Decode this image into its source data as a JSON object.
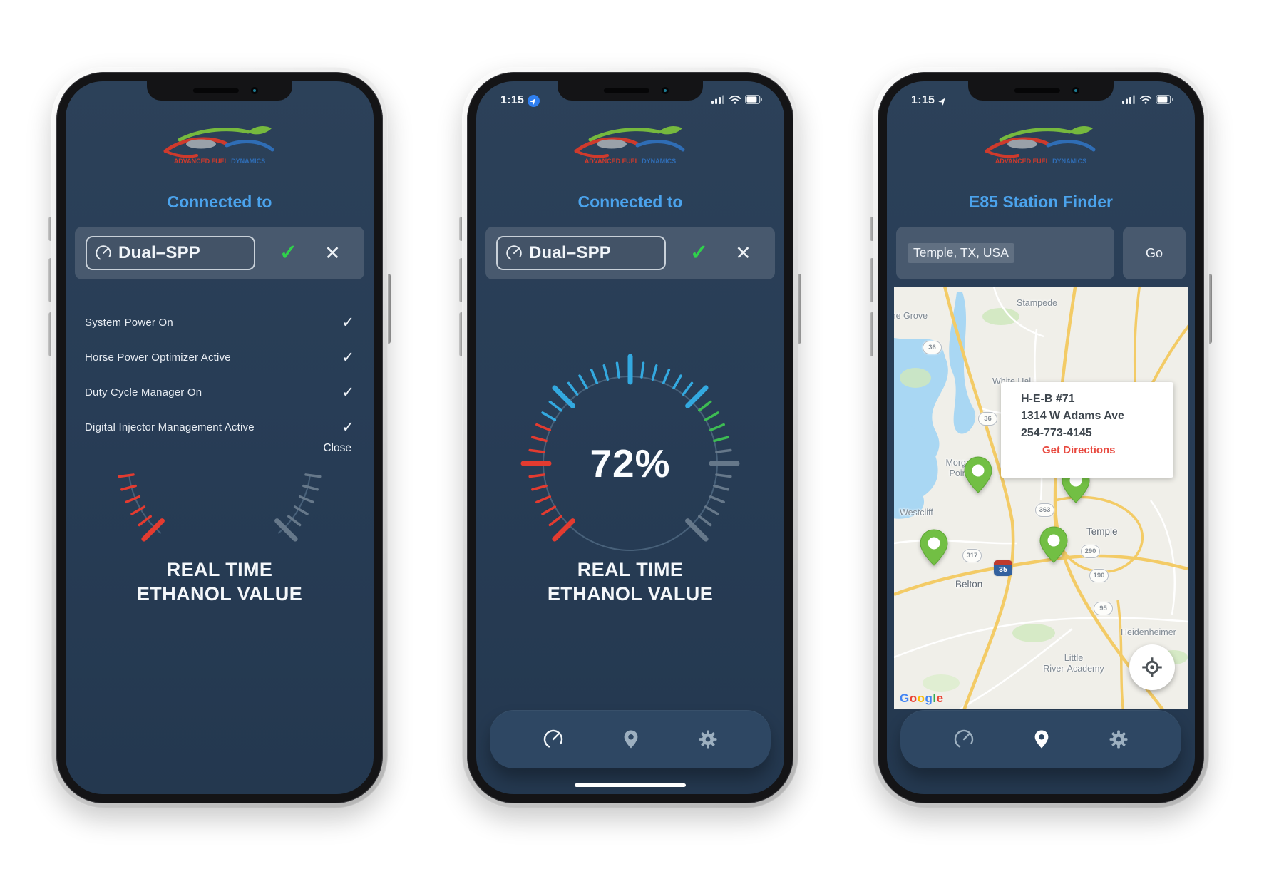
{
  "colors": {
    "accent_blue": "#4ba3ec",
    "screen_bg": "#273c55",
    "gauge": {
      "red": "#e33b30",
      "blue": "#33a9e0",
      "green": "#3dbb53",
      "gray": "#66788a",
      "track": "#48617a"
    },
    "marker_green": "#72bf44",
    "directions_red": "#e8493f"
  },
  "logo": {
    "line1": "ADVANCED FUEL",
    "line2": "DYNAMICS"
  },
  "phones": [
    {
      "header": "Connected to",
      "device_name": "Dual–SPP",
      "confirm_icon": "✓",
      "dismiss_icon": "✕",
      "checklist": [
        {
          "label": "System Power On",
          "mark": "✓"
        },
        {
          "label": "Horse Power Optimizer Active",
          "mark": "✓"
        },
        {
          "label": "Duty Cycle Manager On",
          "mark": "✓"
        },
        {
          "label": "Digital Injector Management Active",
          "mark": "✓"
        }
      ],
      "close_label": "Close",
      "realtime_line1": "REAL TIME",
      "realtime_line2": "ETHANOL VALUE",
      "gauge": {
        "partial": true
      }
    },
    {
      "status_time": "1:15",
      "header": "Connected to",
      "device_name": "Dual–SPP",
      "confirm_icon": "✓",
      "dismiss_icon": "✕",
      "gauge": {
        "partial": false,
        "value": 72,
        "value_label": "72%"
      },
      "realtime_line1": "REAL TIME",
      "realtime_line2": "ETHANOL VALUE"
    },
    {
      "status_time": "1:15",
      "header": "E85 Station Finder",
      "search_value": "Temple, TX, USA",
      "go_label": "Go",
      "map": {
        "labels": {
          "the_grove": "The Grove",
          "stampede": "Stampede",
          "white_hall": "White Hall",
          "morgans_1": "Morgan's",
          "morgans_2": "Point R",
          "westcliff": "Westcliff",
          "temple": "Temple",
          "belton": "Belton",
          "heidenheimer": "Heidenheimer",
          "little_river_1": "Little",
          "little_river_2": "River-Academy"
        },
        "shields": {
          "s36a": "36",
          "s36b": "36",
          "s363": "363",
          "s317": "317",
          "s290": "290",
          "s190": "190",
          "s95": "95"
        },
        "interstate": "35",
        "info_card": {
          "name": "H-E-B #71",
          "address": "1314 W Adams Ave",
          "phone": "254-773-4145",
          "directions": "Get Directions"
        },
        "google": {
          "g1": "G",
          "o1": "o",
          "o2": "o",
          "g2": "g",
          "l1": "l",
          "e1": "e"
        }
      }
    }
  ]
}
